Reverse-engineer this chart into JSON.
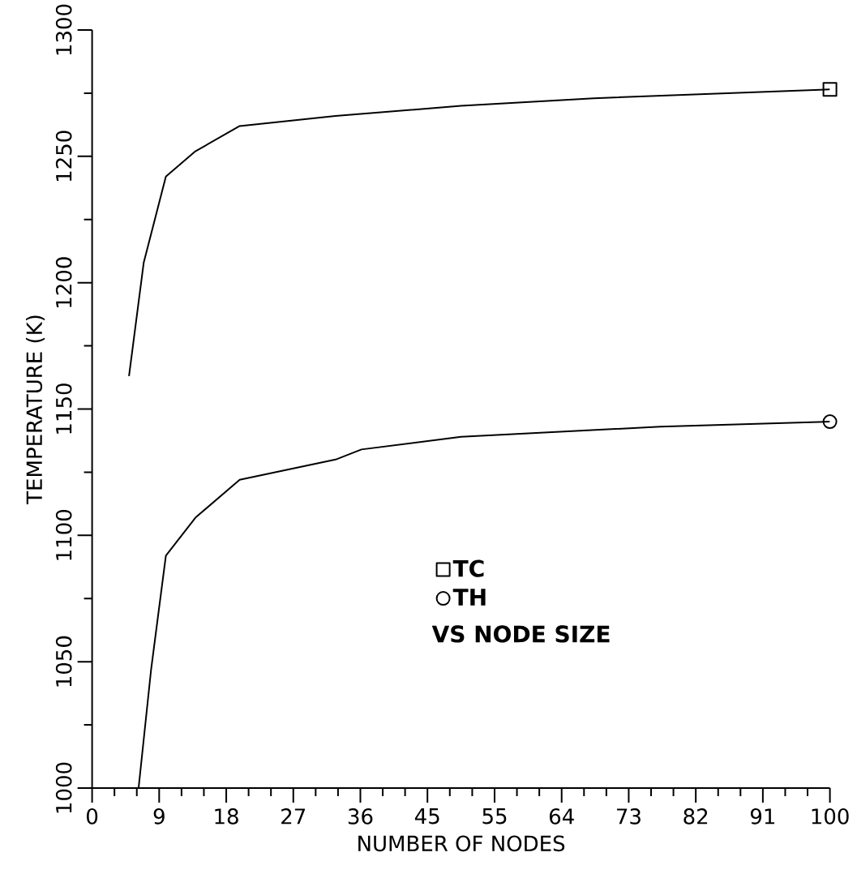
{
  "chart_data": {
    "type": "line",
    "xlabel": "NUMBER OF NODES",
    "ylabel": "TEMPERATURE (K)",
    "xlim": [
      0,
      100
    ],
    "ylim": [
      1000,
      1300
    ],
    "xticks": [
      0,
      {
        "value": 3.03,
        "label": null
      },
      {
        "value": 6.06,
        "label": null
      },
      {
        "value": 9.09,
        "label": "9"
      },
      {
        "value": 12.12,
        "label": null
      },
      {
        "value": 15.15,
        "label": null
      },
      {
        "value": 18.18,
        "label": "18"
      },
      {
        "value": 21.21,
        "label": null
      },
      {
        "value": 24.24,
        "label": null
      },
      {
        "value": 27.27,
        "label": "27"
      },
      {
        "value": 30.3,
        "label": null
      },
      {
        "value": 33.33,
        "label": null
      },
      {
        "value": 36.36,
        "label": "36"
      },
      {
        "value": 39.39,
        "label": null
      },
      {
        "value": 42.42,
        "label": null
      },
      {
        "value": 45.45,
        "label": "45"
      },
      {
        "value": 48.48,
        "label": null
      },
      {
        "value": 51.52,
        "label": null
      },
      {
        "value": 54.55,
        "label": "55"
      },
      {
        "value": 57.58,
        "label": null
      },
      {
        "value": 60.61,
        "label": null
      },
      {
        "value": 63.64,
        "label": "64"
      },
      {
        "value": 66.67,
        "label": null
      },
      {
        "value": 69.7,
        "label": null
      },
      {
        "value": 72.73,
        "label": "73"
      },
      {
        "value": 75.76,
        "label": null
      },
      {
        "value": 78.79,
        "label": null
      },
      {
        "value": 81.82,
        "label": "82"
      },
      {
        "value": 84.85,
        "label": null
      },
      {
        "value": 87.88,
        "label": null
      },
      {
        "value": 90.91,
        "label": "91"
      },
      {
        "value": 93.94,
        "label": null
      },
      {
        "value": 96.97,
        "label": null
      },
      100
    ],
    "yticks": [
      1000,
      {
        "value": 1025,
        "label": null
      },
      1050,
      {
        "value": 1075,
        "label": null
      },
      1100,
      {
        "value": 1125,
        "label": null
      },
      1150,
      {
        "value": 1175,
        "label": null
      },
      1200,
      {
        "value": 1225,
        "label": null
      },
      1250,
      {
        "value": 1275,
        "label": null
      },
      1300
    ],
    "grid": false,
    "legend": "bottom right",
    "line_style": "solid",
    "series": [
      {
        "color": "#000000",
        "x": [
          5,
          7,
          10,
          14,
          20,
          33,
          50,
          68,
          100
        ],
        "values": [
          1163,
          1208,
          1242,
          1252,
          1262,
          1266,
          1270,
          1273,
          1276.5
        ]
      },
      {
        "color": "#000000",
        "x": [
          6.3,
          8,
          10,
          14,
          20,
          33,
          36.5,
          50,
          77,
          100
        ],
        "values": [
          1000,
          1047,
          1092,
          1107,
          1122,
          1130,
          1134,
          1139,
          1143,
          1145
        ]
      },
      {
        "name": "TC",
        "type": "scatter",
        "color": "#000000",
        "marker": "square",
        "x": [
          100
        ],
        "values": [
          1276.5
        ]
      },
      {
        "name": "TH",
        "type": "scatter",
        "color": "#000000",
        "marker": "circle",
        "x": [
          100
        ],
        "values": [
          1145
        ]
      }
    ],
    "annotations": [
      "VS NODE SIZE"
    ]
  }
}
